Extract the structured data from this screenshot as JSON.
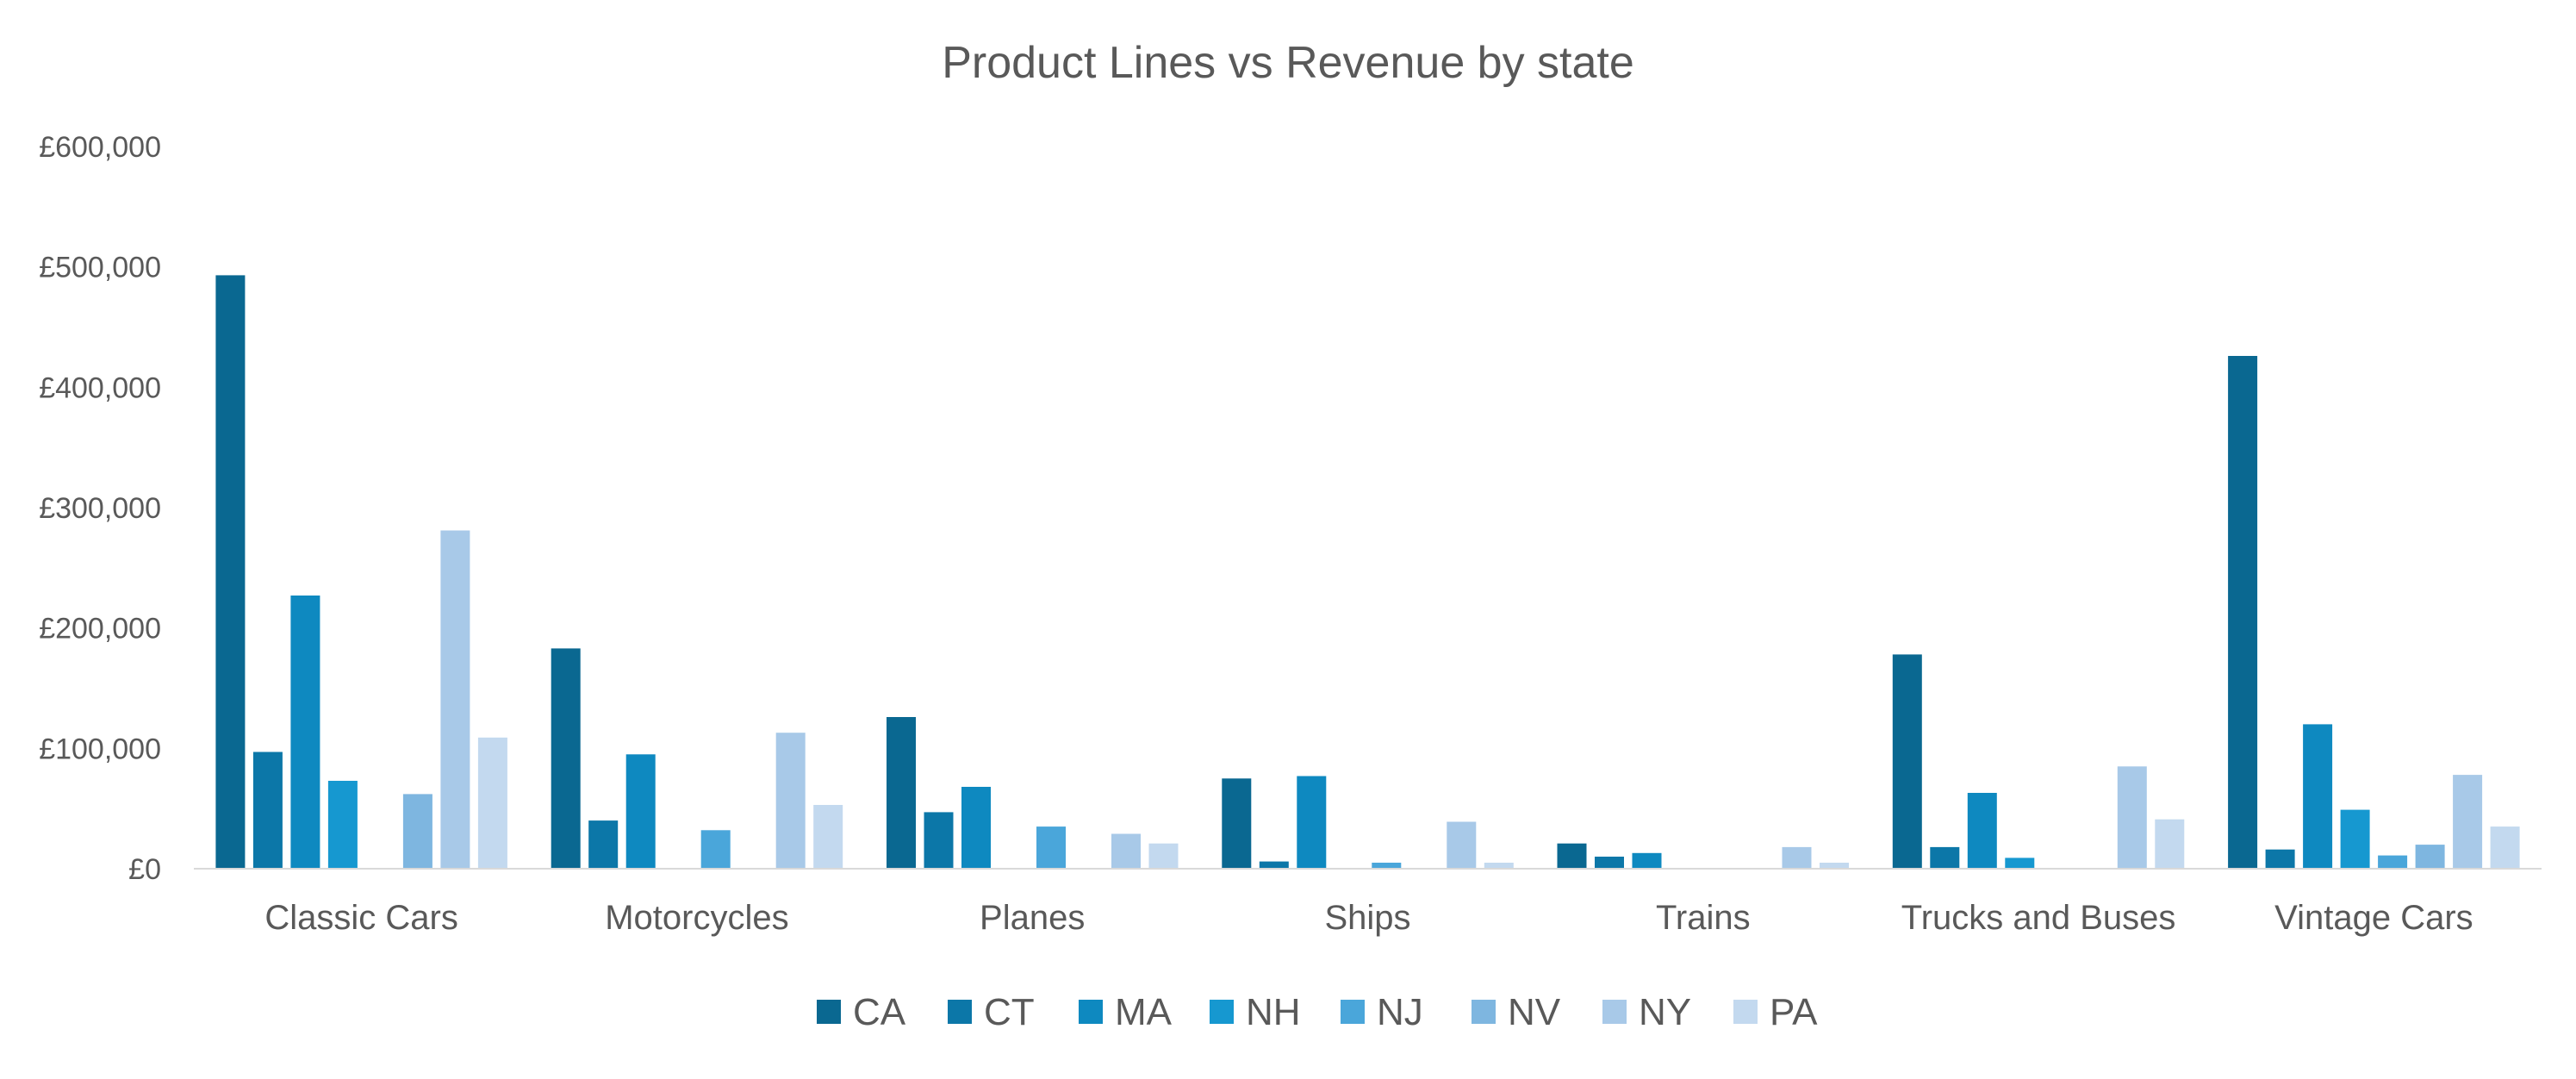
{
  "chart_data": {
    "type": "bar",
    "title": "Product Lines vs Revenue by state",
    "xlabel": "",
    "ylabel": "",
    "ylim": [
      0,
      600000
    ],
    "y_ticks": [
      {
        "value": 0,
        "label": "£0"
      },
      {
        "value": 100000,
        "label": "£100,000"
      },
      {
        "value": 200000,
        "label": "£200,000"
      },
      {
        "value": 300000,
        "label": "£300,000"
      },
      {
        "value": 400000,
        "label": "£400,000"
      },
      {
        "value": 500000,
        "label": "£500,000"
      },
      {
        "value": 600000,
        "label": "£600,000"
      }
    ],
    "grid": false,
    "legend_position": "bottom",
    "categories": [
      "Classic Cars",
      "Motorcycles",
      "Planes",
      "Ships",
      "Trains",
      "Trucks and Buses",
      "Vintage Cars"
    ],
    "series": [
      {
        "name": "CA",
        "color": "#0a6891",
        "values": [
          493000,
          183000,
          126000,
          75000,
          21000,
          178000,
          426000
        ]
      },
      {
        "name": "CT",
        "color": "#0c77a8",
        "values": [
          97000,
          40000,
          47000,
          6000,
          10000,
          18000,
          16000
        ]
      },
      {
        "name": "MA",
        "color": "#0e89c0",
        "values": [
          227000,
          95000,
          68000,
          77000,
          13000,
          63000,
          120000
        ]
      },
      {
        "name": "NH",
        "color": "#1698d0",
        "values": [
          73000,
          null,
          null,
          null,
          null,
          9000,
          49000
        ]
      },
      {
        "name": "NJ",
        "color": "#4aa6da",
        "values": [
          null,
          32000,
          35000,
          5000,
          null,
          null,
          11000
        ]
      },
      {
        "name": "NV",
        "color": "#7eb6e0",
        "values": [
          62000,
          null,
          null,
          null,
          null,
          null,
          20000
        ]
      },
      {
        "name": "NY",
        "color": "#a8c9e8",
        "values": [
          281000,
          113000,
          29000,
          39000,
          18000,
          85000,
          78000
        ]
      },
      {
        "name": "PA",
        "color": "#c3d9ef",
        "values": [
          109000,
          53000,
          21000,
          5000,
          5000,
          41000,
          35000
        ]
      }
    ]
  }
}
